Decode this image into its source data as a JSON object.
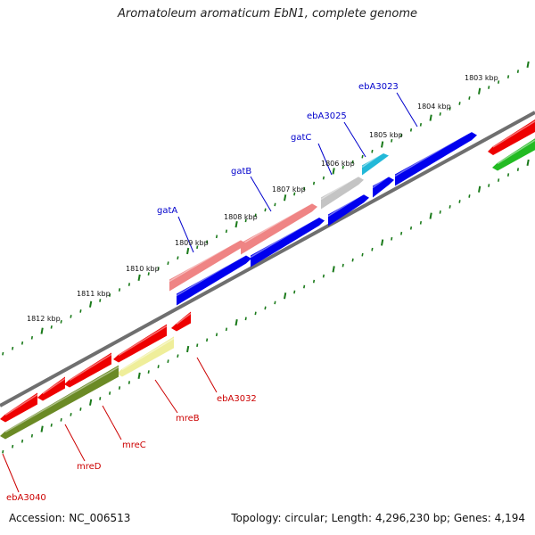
{
  "title": "Aromatoleum aromaticum EbN1, complete genome",
  "footer": {
    "accession": "Accession: NC_006513",
    "summary": "Topology: circular; Length: 4,296,230 bp; Genes: 4,194"
  },
  "colors": {
    "backbone": "#7f7f7f",
    "tick": "#1a7a1a",
    "gene_label_forward": "#0000cc",
    "gene_label_reverse": "#cc0000",
    "blue_cds": "#0000ee",
    "red_cds": "#ee0000",
    "pink_rna": "#ef8484",
    "gray_feature": "#c4c4c4",
    "cyan_feature": "#22b8d8",
    "olive_feature": "#6b8a25",
    "yellow_feature": "#efee9a",
    "green_feature": "#22bb22"
  },
  "ruler_labels": [
    "1803 kbp",
    "1804 kbp",
    "1805 kbp",
    "1806 kbp",
    "1807 kbp",
    "1808 kbp",
    "1809 kbp",
    "1810 kbp",
    "1811 kbp",
    "1812 kbp"
  ],
  "gene_labels": {
    "top": [
      "ebA3023",
      "ebA3025",
      "gatC",
      "gatB",
      "gatA"
    ],
    "bottom": [
      "ebA3032",
      "mreB",
      "mreC",
      "mreD",
      "ebA3040"
    ]
  }
}
